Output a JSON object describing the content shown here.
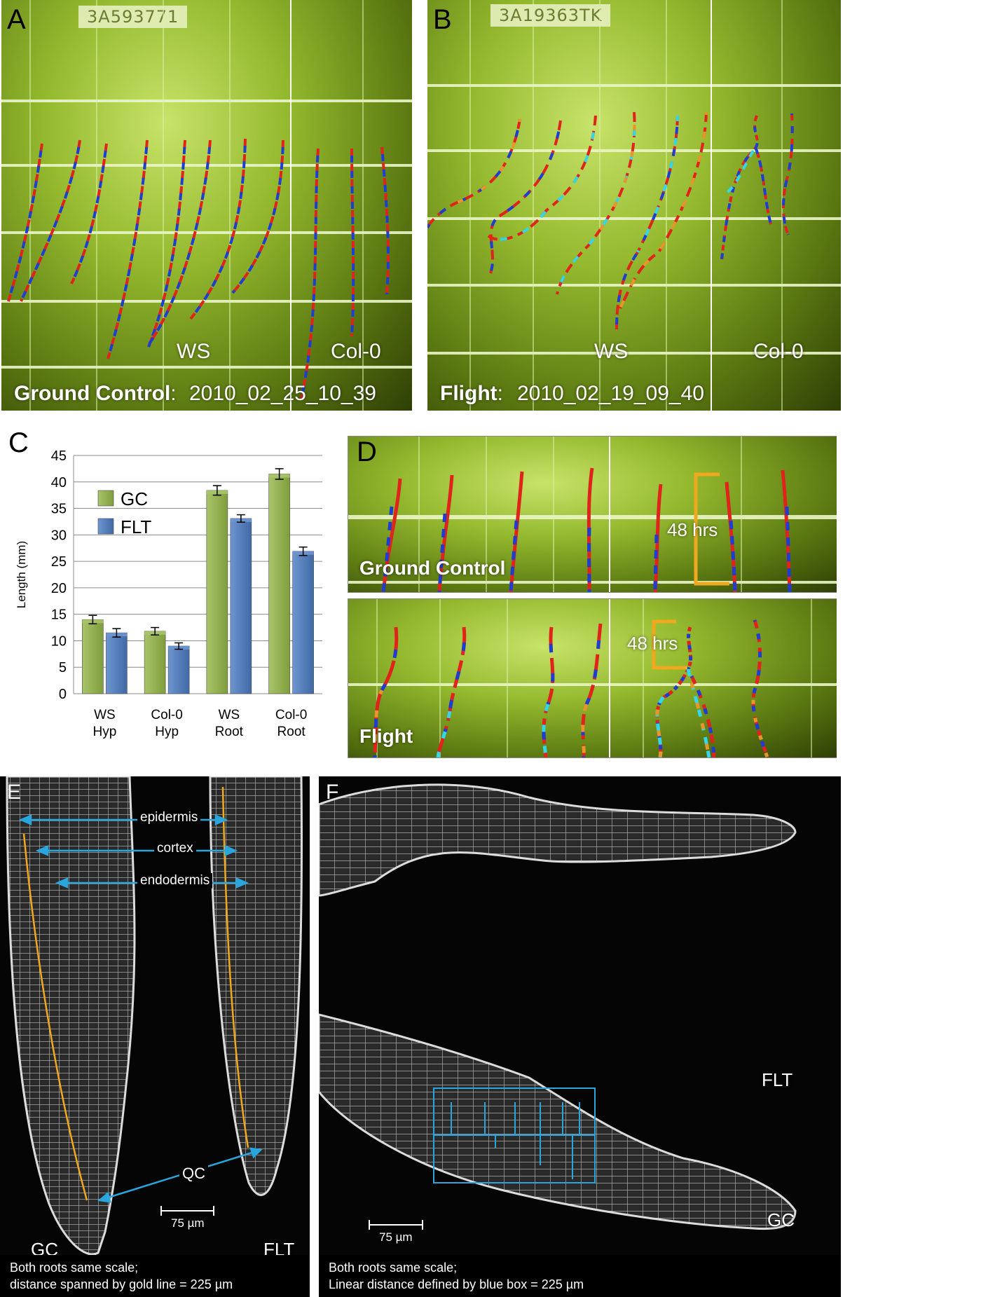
{
  "panel_a": {
    "letter": "A",
    "plate_id": "3A593771",
    "ws_label": "WS",
    "col_label": "Col-0",
    "condition": "Ground Control",
    "timestamp": "2010_02_25_10_39"
  },
  "panel_b": {
    "letter": "B",
    "plate_id": "3A19363TK",
    "ws_label": "WS",
    "col_label": "Col-0",
    "condition": "Flight",
    "timestamp": "2010_02_19_09_40"
  },
  "panel_c": {
    "letter": "C"
  },
  "panel_d": {
    "letter": "D",
    "top_label": "Ground Control",
    "bottom_label": "Flight",
    "top_annotation": "48 hrs",
    "bottom_annotation": "48 hrs"
  },
  "panel_e": {
    "letter": "E",
    "label_epidermis": "epidermis",
    "label_cortex": "cortex",
    "label_endodermis": "endodermis",
    "label_qc": "QC",
    "scale_label": "75 µm",
    "left_root": "GC",
    "right_root": "FLT",
    "caption_line1": "Both roots same scale;",
    "caption_line2": "distance spanned by gold line = 225 µm"
  },
  "panel_f": {
    "letter": "F",
    "top_root": "FLT",
    "bottom_root": "GC",
    "scale_label": "75 µm",
    "caption_line1": "Both roots same scale;",
    "caption_line2": "Linear distance defined by blue box = 225 µm"
  },
  "colors": {
    "gc": "#7f9e3c",
    "flt": "#3f6aa6",
    "trace_red": "#e0241b",
    "trace_blue": "#1f3ed0",
    "trace_cyan": "#35d6e6",
    "trace_orange": "#e8962a",
    "gold": "#f0a81e",
    "marker_blue": "#2aa6de"
  },
  "chart_data": {
    "type": "bar",
    "categories": [
      "WS Hyp",
      "Col-0 Hyp",
      "WS Root",
      "Col-0 Root"
    ],
    "series": [
      {
        "name": "GC",
        "values": [
          14.0,
          11.8,
          38.4,
          41.5
        ],
        "errors": [
          0.8,
          0.7,
          0.9,
          1.0
        ]
      },
      {
        "name": "FLT",
        "values": [
          11.5,
          9.0,
          33.1,
          26.9
        ],
        "errors": [
          0.8,
          0.6,
          0.7,
          0.8
        ]
      }
    ],
    "ylabel": "Length (mm)",
    "ylim": [
      0,
      45
    ],
    "yticks": [
      0,
      5,
      10,
      15,
      20,
      25,
      30,
      35,
      40,
      45
    ],
    "xlabel": "",
    "grid": true,
    "legend": "upper-left"
  }
}
